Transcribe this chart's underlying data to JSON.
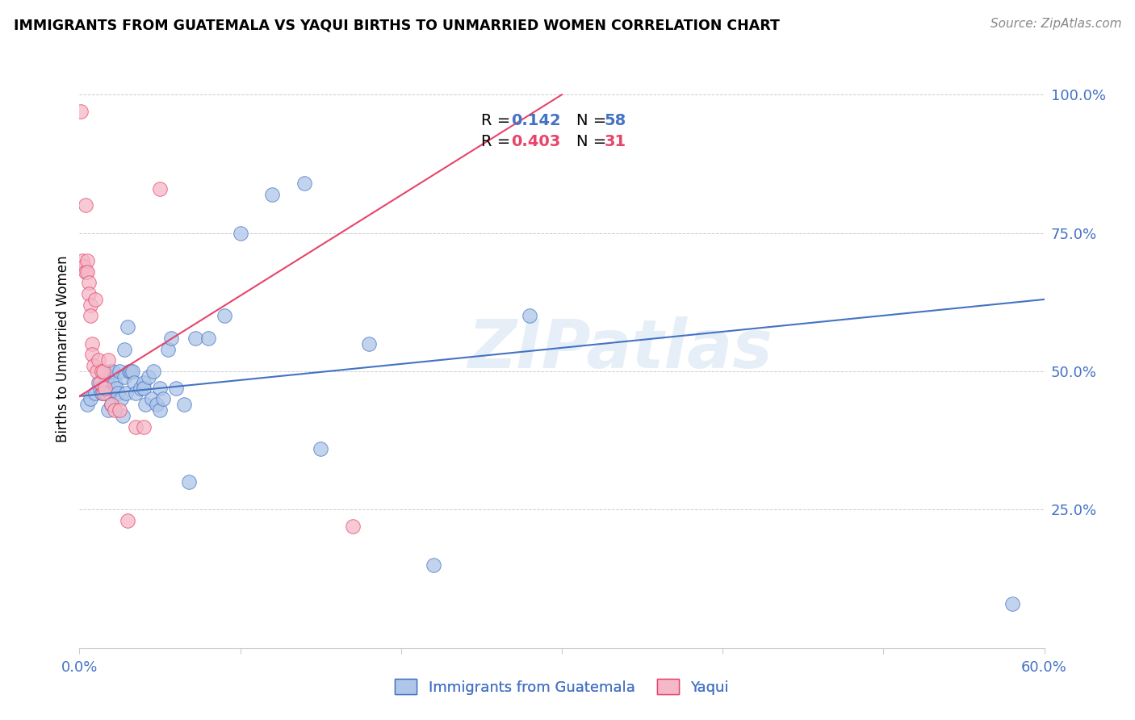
{
  "title": "IMMIGRANTS FROM GUATEMALA VS YAQUI BIRTHS TO UNMARRIED WOMEN CORRELATION CHART",
  "source": "Source: ZipAtlas.com",
  "ylabel": "Births to Unmarried Women",
  "legend_label1": "Immigrants from Guatemala",
  "legend_label2": "Yaqui",
  "xlim": [
    0.0,
    0.6
  ],
  "ylim": [
    0.0,
    1.08
  ],
  "ytick_vals": [
    0.0,
    0.25,
    0.5,
    0.75,
    1.0
  ],
  "ytick_labels": [
    "",
    "25.0%",
    "50.0%",
    "75.0%",
    "100.0%"
  ],
  "xtick_vals": [
    0.0,
    0.1,
    0.2,
    0.3,
    0.4,
    0.5,
    0.6
  ],
  "xtick_labels": [
    "0.0%",
    "",
    "",
    "",
    "",
    "",
    "60.0%"
  ],
  "blue_color": "#aec6e8",
  "pink_color": "#f4b8c8",
  "line_blue": "#4472c4",
  "line_pink": "#e8446a",
  "watermark": "ZIPatlas",
  "blue_scatter_x": [
    0.005,
    0.007,
    0.01,
    0.012,
    0.013,
    0.014,
    0.015,
    0.016,
    0.017,
    0.017,
    0.018,
    0.018,
    0.019,
    0.019,
    0.02,
    0.021,
    0.022,
    0.023,
    0.024,
    0.025,
    0.026,
    0.027,
    0.028,
    0.028,
    0.029,
    0.03,
    0.031,
    0.032,
    0.033,
    0.034,
    0.035,
    0.038,
    0.04,
    0.04,
    0.041,
    0.043,
    0.045,
    0.046,
    0.048,
    0.05,
    0.05,
    0.052,
    0.055,
    0.057,
    0.06,
    0.065,
    0.068,
    0.072,
    0.08,
    0.09,
    0.1,
    0.12,
    0.14,
    0.15,
    0.18,
    0.22,
    0.28,
    0.58
  ],
  "blue_scatter_y": [
    0.44,
    0.45,
    0.46,
    0.48,
    0.47,
    0.46,
    0.47,
    0.46,
    0.46,
    0.49,
    0.43,
    0.48,
    0.46,
    0.5,
    0.44,
    0.5,
    0.48,
    0.47,
    0.46,
    0.5,
    0.45,
    0.42,
    0.54,
    0.49,
    0.46,
    0.58,
    0.5,
    0.5,
    0.5,
    0.48,
    0.46,
    0.47,
    0.48,
    0.47,
    0.44,
    0.49,
    0.45,
    0.5,
    0.44,
    0.47,
    0.43,
    0.45,
    0.54,
    0.56,
    0.47,
    0.44,
    0.3,
    0.56,
    0.56,
    0.6,
    0.75,
    0.82,
    0.84,
    0.36,
    0.55,
    0.15,
    0.6,
    0.08
  ],
  "pink_scatter_x": [
    0.001,
    0.002,
    0.003,
    0.004,
    0.005,
    0.005,
    0.006,
    0.006,
    0.007,
    0.007,
    0.008,
    0.008,
    0.009,
    0.01,
    0.011,
    0.012,
    0.013,
    0.014,
    0.015,
    0.015,
    0.016,
    0.018,
    0.02,
    0.022,
    0.025,
    0.03,
    0.035,
    0.04,
    0.05,
    0.17,
    0.004
  ],
  "pink_scatter_y": [
    0.97,
    0.7,
    0.69,
    0.68,
    0.7,
    0.68,
    0.66,
    0.64,
    0.62,
    0.6,
    0.55,
    0.53,
    0.51,
    0.63,
    0.5,
    0.52,
    0.48,
    0.5,
    0.5,
    0.46,
    0.47,
    0.52,
    0.44,
    0.43,
    0.43,
    0.23,
    0.4,
    0.4,
    0.83,
    0.22,
    0.8
  ],
  "blue_trend": [
    0.0,
    0.6,
    0.455,
    0.63
  ],
  "pink_trend": [
    0.0,
    0.3,
    0.455,
    1.0
  ]
}
